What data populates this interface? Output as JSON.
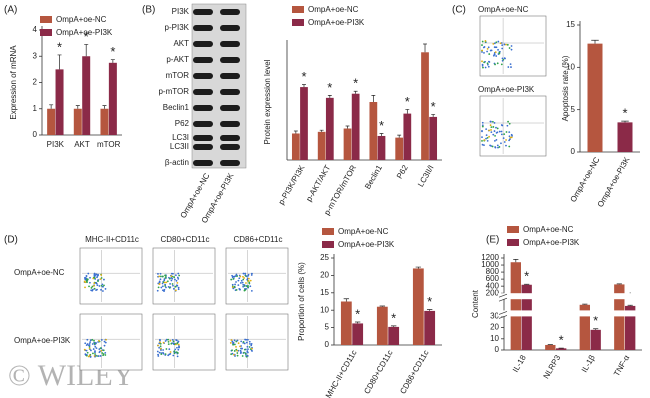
{
  "chart_data": [
    {
      "type": "bar",
      "panel_label": "(A)",
      "ylabel": "Expression of mRNA",
      "categories": [
        "PI3K",
        "AKT",
        "mTOR"
      ],
      "series": [
        {
          "name": "OmpA+oe-NC",
          "color": "#b5563f",
          "values": [
            1,
            1,
            1
          ],
          "errors": [
            0.15,
            0.12,
            0.12
          ]
        },
        {
          "name": "OmpA+oe-PI3K",
          "color": "#8b2a48",
          "values": [
            2.5,
            3.0,
            2.75
          ],
          "errors": [
            0.55,
            0.45,
            0.12
          ],
          "labels": [
            "*",
            "*",
            "*"
          ]
        }
      ],
      "ylim": [
        0,
        4
      ],
      "yticks": [
        0,
        1,
        2,
        3,
        4
      ]
    },
    {
      "type": "bar",
      "panel_label": "(B)",
      "ylabel": "Protein expression level",
      "blot_labels": [
        "PI3K",
        "p-PI3K",
        "AKT",
        "p-AKT",
        "mTOR",
        "p-mTOR",
        "Beclin1",
        "P62",
        "LC3I",
        "LC3II",
        "β-actin"
      ],
      "blot_lanes": [
        "OmpA+oe-NC",
        "OmpA+oe-PI3K"
      ],
      "categories": [
        "p-PI3K/PI3K",
        "p-AKT/AKT",
        "p-mTOR/mTOR",
        "Beclin1",
        "P62",
        "LC3II/I"
      ],
      "series": [
        {
          "name": "OmpA+oe-NC",
          "color": "#b5563f",
          "values": [
            0.32,
            0.34,
            0.38,
            0.7,
            0.27,
            1.3
          ],
          "errors": [
            0.03,
            0.02,
            0.03,
            0.08,
            0.03,
            0.1
          ]
        },
        {
          "name": "OmpA+oe-PI3K",
          "color": "#8b2a48",
          "values": [
            0.88,
            0.75,
            0.8,
            0.29,
            0.56,
            0.52
          ],
          "errors": [
            0.03,
            0.03,
            0.03,
            0.03,
            0.05,
            0.03
          ],
          "labels": [
            "*",
            "*",
            "*",
            "*",
            "*",
            "*"
          ]
        }
      ],
      "ylim": [
        0,
        1.4
      ]
    },
    {
      "type": "bar",
      "panel_label": "(C)",
      "ylabel": "Apoptosis rate (%)",
      "flow_labels": [
        "OmpA+oe-NC",
        "OmpA+oe-PI3K"
      ],
      "categories": [
        "OmpA+oe-NC",
        "OmpA+oe-PI3K"
      ],
      "values": [
        12.8,
        3.5
      ],
      "errors": [
        0.4,
        0.15
      ],
      "colors": [
        "#b5563f",
        "#8b2a48"
      ],
      "labels": [
        null,
        "*"
      ],
      "ylim": [
        0,
        15
      ],
      "yticks": [
        0,
        5,
        10,
        15
      ]
    },
    {
      "type": "bar",
      "panel_label": "(D)",
      "ylabel": "Proportion of cells (%)",
      "flow_columns": [
        "MHC-II+CD11c",
        "CD80+CD11c",
        "CD86+CD11c"
      ],
      "flow_rows": [
        "OmpA+oe-NC",
        "OmpA+oe-PI3K"
      ],
      "categories": [
        "MHC-II+CD11c",
        "CD80+CD11c",
        "CD86+CD11c"
      ],
      "series": [
        {
          "name": "OmpA+oe-NC",
          "color": "#b5563f",
          "values": [
            12.5,
            11,
            22
          ],
          "errors": [
            0.8,
            0.2,
            0.4
          ]
        },
        {
          "name": "OmpA+oe-PI3K",
          "color": "#8b2a48",
          "values": [
            6.2,
            5.2,
            9.8
          ],
          "errors": [
            0.4,
            0.3,
            0.4
          ],
          "labels": [
            "*",
            "*",
            "*"
          ]
        }
      ],
      "ylim": [
        0,
        25
      ],
      "yticks": [
        0,
        5,
        10,
        15,
        20,
        25
      ]
    },
    {
      "type": "bar",
      "panel_label": "(E)",
      "ylabel": "Content",
      "categories": [
        "IL-18",
        "NLRP3",
        "IL-1β",
        "TNF-α"
      ],
      "series": [
        {
          "name": "OmpA+oe-NC",
          "color": "#b5563f",
          "values": [
            1080,
            4.5,
            75,
            450
          ],
          "errors": [
            80,
            0.3,
            3,
            15
          ]
        },
        {
          "name": "OmpA+oe-PI3K",
          "color": "#8b2a48",
          "values": [
            440,
            1.5,
            18,
            70
          ],
          "errors": [
            15,
            0.2,
            1,
            3
          ],
          "labels": [
            "*",
            "*",
            "*",
            "*"
          ]
        }
      ],
      "ylim": [
        0,
        1200
      ],
      "axis_breaks": [
        [
          30,
          50
        ],
        [
          100,
          200
        ]
      ],
      "yticks": [
        0,
        10,
        20,
        30,
        200,
        400,
        600,
        800,
        1000,
        1200
      ]
    }
  ],
  "watermark": "© WILEY"
}
